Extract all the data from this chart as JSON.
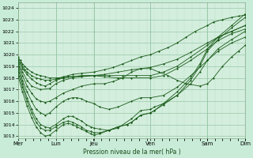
{
  "background_color": "#c8ecd8",
  "plot_bg_color": "#d4eede",
  "grid_major_color": "#98c8a8",
  "grid_minor_color": "#b8ddc4",
  "line_color": "#1a5c1a",
  "xlabel": "Pression niveau de la mer( hPa )",
  "yticks": [
    1013,
    1014,
    1015,
    1016,
    1017,
    1018,
    1019,
    1020,
    1021,
    1022,
    1023,
    1024
  ],
  "ylim": [
    1012.8,
    1024.5
  ],
  "xlim": [
    0.0,
    5.0
  ],
  "day_labels": [
    "Mer",
    "Lun",
    "Jeu",
    "Ven",
    "Sam",
    "Dim"
  ],
  "day_positions": [
    0.0,
    0.833,
    1.667,
    2.917,
    4.167,
    5.0
  ],
  "series": [
    {
      "x": [
        0.0,
        0.05,
        0.1,
        0.15,
        0.2,
        0.3,
        0.4,
        0.5,
        0.6,
        0.7,
        0.833,
        0.9,
        1.0,
        1.1,
        1.2,
        1.4,
        1.667,
        1.9,
        2.1,
        2.3,
        2.5,
        2.7,
        2.917,
        3.1,
        3.3,
        3.5,
        3.7,
        3.9,
        4.167,
        4.3,
        4.5,
        4.7,
        4.85,
        5.0
      ],
      "y": [
        1019.8,
        1019.5,
        1019.2,
        1019.0,
        1018.8,
        1018.5,
        1018.3,
        1018.2,
        1018.1,
        1018.0,
        1018.0,
        1018.0,
        1018.1,
        1018.2,
        1018.3,
        1018.4,
        1018.5,
        1018.7,
        1018.9,
        1019.2,
        1019.5,
        1019.8,
        1020.0,
        1020.3,
        1020.6,
        1021.0,
        1021.5,
        1022.0,
        1022.5,
        1022.8,
        1023.0,
        1023.2,
        1023.3,
        1023.4
      ]
    },
    {
      "x": [
        0.0,
        0.05,
        0.1,
        0.15,
        0.2,
        0.3,
        0.4,
        0.5,
        0.6,
        0.7,
        0.833,
        0.9,
        1.0,
        1.1,
        1.667,
        1.9,
        2.2,
        2.5,
        2.7,
        2.917,
        3.2,
        3.5,
        3.8,
        4.167,
        4.4,
        4.7,
        5.0
      ],
      "y": [
        1019.6,
        1019.3,
        1019.0,
        1018.7,
        1018.5,
        1018.2,
        1018.0,
        1017.9,
        1017.8,
        1017.8,
        1017.9,
        1018.0,
        1018.0,
        1018.1,
        1018.2,
        1018.3,
        1018.5,
        1018.7,
        1018.8,
        1018.9,
        1019.2,
        1019.6,
        1020.2,
        1021.0,
        1021.5,
        1022.0,
        1022.5
      ]
    },
    {
      "x": [
        0.0,
        0.1,
        0.2,
        0.3,
        0.4,
        0.5,
        0.6,
        0.7,
        0.833,
        1.0,
        1.2,
        1.4,
        1.667,
        2.0,
        2.3,
        2.6,
        2.917,
        3.2,
        3.5,
        3.8,
        4.167,
        4.4,
        4.7,
        5.0
      ],
      "y": [
        1019.5,
        1018.8,
        1018.3,
        1017.9,
        1017.6,
        1017.4,
        1017.3,
        1017.5,
        1017.8,
        1018.0,
        1018.1,
        1018.2,
        1018.2,
        1018.2,
        1018.2,
        1018.2,
        1018.2,
        1018.5,
        1019.0,
        1019.8,
        1020.8,
        1021.5,
        1022.0,
        1022.5
      ]
    },
    {
      "x": [
        0.0,
        0.1,
        0.2,
        0.3,
        0.5,
        0.7,
        0.833,
        1.0,
        1.2,
        1.4,
        1.667,
        1.9,
        2.2,
        2.5,
        2.917,
        3.2,
        3.5,
        3.8,
        4.167,
        4.4,
        4.7,
        5.0
      ],
      "y": [
        1019.3,
        1018.5,
        1017.8,
        1017.3,
        1017.0,
        1017.1,
        1017.5,
        1017.8,
        1018.0,
        1018.1,
        1018.2,
        1018.1,
        1018.0,
        1018.0,
        1018.0,
        1018.2,
        1018.8,
        1019.5,
        1020.5,
        1021.2,
        1021.8,
        1022.2
      ]
    },
    {
      "x": [
        0.0,
        0.1,
        0.2,
        0.3,
        0.4,
        0.5,
        0.6,
        0.7,
        0.833,
        1.0,
        1.2,
        1.4,
        1.667,
        1.9,
        2.1,
        2.3,
        2.5,
        2.7,
        2.917,
        3.1,
        3.3,
        3.5,
        3.7,
        4.0,
        4.167,
        4.3,
        4.5,
        4.7,
        4.85,
        5.0
      ],
      "y": [
        1019.2,
        1018.2,
        1017.3,
        1016.7,
        1016.2,
        1016.0,
        1015.9,
        1016.0,
        1016.3,
        1016.7,
        1017.0,
        1017.3,
        1017.5,
        1017.5,
        1017.7,
        1018.0,
        1018.5,
        1018.8,
        1018.8,
        1018.5,
        1018.2,
        1017.8,
        1017.5,
        1017.3,
        1017.5,
        1018.0,
        1019.0,
        1019.8,
        1020.3,
        1020.8
      ]
    },
    {
      "x": [
        0.0,
        0.1,
        0.2,
        0.3,
        0.4,
        0.5,
        0.6,
        0.7,
        0.833,
        1.0,
        1.1,
        1.2,
        1.3,
        1.4,
        1.5,
        1.667,
        1.8,
        2.0,
        2.2,
        2.5,
        2.7,
        2.917,
        3.2,
        3.5,
        3.8,
        4.167,
        4.4,
        4.7,
        5.0
      ],
      "y": [
        1019.0,
        1017.8,
        1016.8,
        1016.0,
        1015.3,
        1015.0,
        1014.8,
        1015.0,
        1015.5,
        1016.0,
        1016.2,
        1016.3,
        1016.3,
        1016.2,
        1016.0,
        1015.8,
        1015.5,
        1015.3,
        1015.5,
        1016.0,
        1016.3,
        1016.3,
        1016.5,
        1017.2,
        1018.2,
        1019.5,
        1020.3,
        1021.0,
        1021.5
      ]
    },
    {
      "x": [
        0.0,
        0.1,
        0.2,
        0.3,
        0.4,
        0.5,
        0.6,
        0.7,
        0.833,
        1.0,
        1.1,
        1.2,
        1.3,
        1.4,
        1.5,
        1.6,
        1.667,
        1.8,
        2.0,
        2.2,
        2.5,
        2.7,
        2.917,
        3.0,
        3.2,
        3.5,
        3.8,
        4.0,
        4.167,
        4.4,
        4.7,
        5.0
      ],
      "y": [
        1018.8,
        1017.5,
        1016.3,
        1015.3,
        1014.5,
        1014.0,
        1013.8,
        1013.7,
        1014.0,
        1014.5,
        1014.7,
        1014.7,
        1014.5,
        1014.3,
        1014.0,
        1013.8,
        1013.7,
        1013.6,
        1013.5,
        1013.7,
        1014.5,
        1015.2,
        1015.3,
        1015.5,
        1015.8,
        1016.5,
        1017.5,
        1018.5,
        1019.5,
        1020.5,
        1021.3,
        1022.0
      ]
    },
    {
      "x": [
        0.0,
        0.1,
        0.2,
        0.3,
        0.4,
        0.5,
        0.6,
        0.7,
        0.833,
        1.0,
        1.1,
        1.2,
        1.3,
        1.4,
        1.5,
        1.6,
        1.667,
        1.8,
        2.0,
        2.2,
        2.4,
        2.5,
        2.6,
        2.7,
        2.917,
        3.0,
        3.2,
        3.5,
        3.8,
        4.0,
        4.167,
        4.4,
        4.7,
        5.0
      ],
      "y": [
        1018.5,
        1017.2,
        1016.0,
        1015.0,
        1014.2,
        1013.7,
        1013.5,
        1013.5,
        1013.8,
        1014.2,
        1014.3,
        1014.2,
        1014.0,
        1013.8,
        1013.5,
        1013.4,
        1013.3,
        1013.3,
        1013.5,
        1013.8,
        1014.0,
        1014.2,
        1014.5,
        1014.8,
        1015.0,
        1015.2,
        1015.8,
        1016.8,
        1018.0,
        1019.2,
        1020.5,
        1021.5,
        1022.5,
        1023.5
      ]
    },
    {
      "x": [
        0.0,
        0.1,
        0.2,
        0.3,
        0.4,
        0.5,
        0.6,
        0.7,
        0.833,
        1.0,
        1.1,
        1.2,
        1.3,
        1.4,
        1.5,
        1.6,
        1.667,
        1.8,
        2.0,
        2.2,
        2.4,
        2.5,
        2.6,
        2.7,
        2.917,
        3.0,
        3.2,
        3.5,
        3.8,
        4.0,
        4.167,
        4.4,
        4.7,
        5.0
      ],
      "y": [
        1018.2,
        1016.8,
        1015.6,
        1014.6,
        1013.8,
        1013.3,
        1013.0,
        1013.1,
        1013.5,
        1014.0,
        1014.1,
        1014.0,
        1013.8,
        1013.6,
        1013.4,
        1013.2,
        1013.1,
        1013.2,
        1013.5,
        1013.8,
        1014.0,
        1014.2,
        1014.5,
        1014.8,
        1015.0,
        1015.2,
        1015.7,
        1016.5,
        1017.8,
        1019.0,
        1020.3,
        1021.3,
        1022.3,
        1023.2
      ]
    }
  ]
}
